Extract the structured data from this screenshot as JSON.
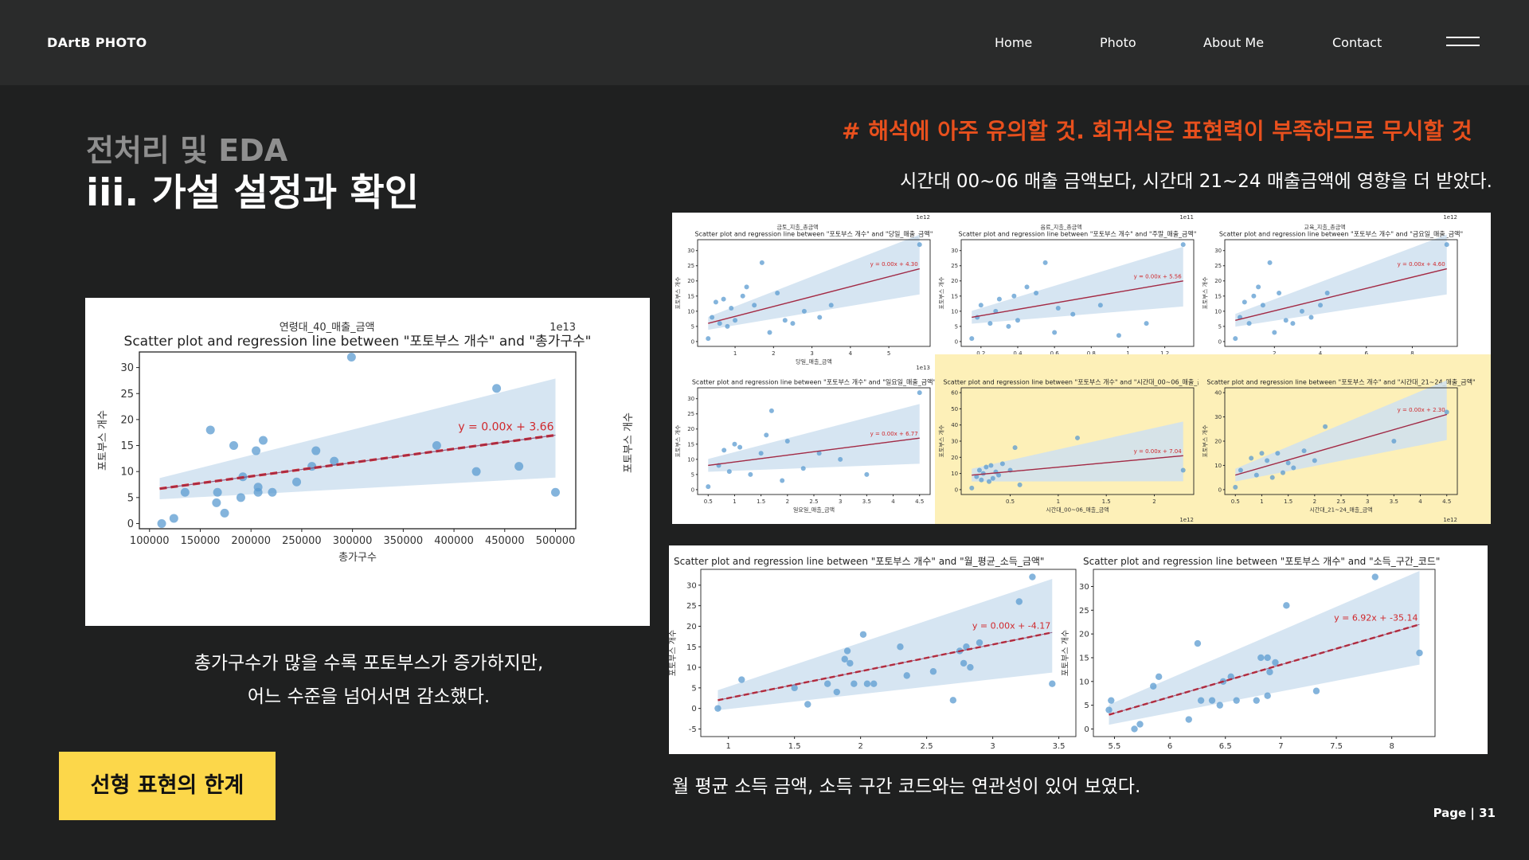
{
  "nav": {
    "brand": "DArtB PHOTO",
    "items": [
      "Home",
      "Photo",
      "About Me",
      "Contact"
    ]
  },
  "header": {
    "subtitle": "전처리 및 EDA",
    "title": "iii. 가설 설정과 확인"
  },
  "warning": "# 해석에 아주 유의할 것. 회귀식은 표현력이 부족하므로 무시할 것",
  "note_right": "시간대 00~06 매출 금액보다, 시간대 21~24 매출금액에 영향을 더 받았다.",
  "caption_left_lines": [
    "총가구수가 많을 수록 포토부스가 증가하지만,",
    "어느 수준을 넘어서면 감소했다."
  ],
  "tag": "선형 표현의 한계",
  "caption_bottom": "월 평균 소득 금액, 소득 구간 코드와는 연관성이 있어 보였다.",
  "page": "Page | 31",
  "colors": {
    "nav_bg": "#2a2b2b",
    "page_bg": "#1f2020",
    "warning": "#e8501d",
    "tag_bg": "#fcd74a",
    "point": "#5b9bd0",
    "band": "#cfe0f0",
    "reg_line": "#d0282c",
    "highlight": "#fdf0b8"
  },
  "chart_data": [
    {
      "id": "main",
      "type": "scatter",
      "top_label": "연령대_40_매출_금액",
      "offset_label": "1e13",
      "title": "Scatter plot and regression line between \"포토부스 개수\" and \"총가구수\"",
      "xlabel": "총가구수",
      "ylabel": "포토부스 개수",
      "xlim": [
        90000,
        520000
      ],
      "ylim": [
        -1,
        33
      ],
      "xticks": [
        100000,
        150000,
        200000,
        250000,
        300000,
        350000,
        400000,
        450000,
        500000
      ],
      "yticks": [
        0,
        5,
        10,
        15,
        20,
        25,
        30
      ],
      "equation": "y = 0.00x + 3.66",
      "points": [
        [
          112000,
          0
        ],
        [
          124000,
          1
        ],
        [
          135000,
          6
        ],
        [
          160000,
          18
        ],
        [
          166000,
          4
        ],
        [
          167000,
          6
        ],
        [
          174000,
          2
        ],
        [
          183000,
          15
        ],
        [
          190000,
          5
        ],
        [
          192000,
          9
        ],
        [
          205000,
          14
        ],
        [
          207000,
          6
        ],
        [
          207000,
          7
        ],
        [
          212000,
          16
        ],
        [
          221000,
          6
        ],
        [
          245000,
          8
        ],
        [
          260000,
          11
        ],
        [
          264000,
          14
        ],
        [
          282000,
          12
        ],
        [
          299000,
          32
        ],
        [
          383000,
          15
        ],
        [
          422000,
          10
        ],
        [
          442000,
          26
        ],
        [
          464000,
          11
        ],
        [
          500000,
          6
        ]
      ],
      "regression": [
        [
          110000,
          6.7
        ],
        [
          500000,
          17.0
        ]
      ]
    },
    {
      "id": "s1",
      "type": "scatter",
      "top_label": "금토_지출_총금액",
      "offset_label": "1e12",
      "title": "Scatter plot and regression line between \"포토부스 개수\" and \"당일_매출_금액\"",
      "xlabel": "당일_매출_금액",
      "ylabel": "포토부스 개수",
      "xticks": [
        1,
        2,
        3,
        4,
        5
      ],
      "yticks": [
        0,
        5,
        10,
        15,
        20,
        25,
        30
      ],
      "equation": "y = 0.00x + 4.30",
      "points": [
        [
          0.3,
          1
        ],
        [
          0.4,
          8
        ],
        [
          0.5,
          13
        ],
        [
          0.6,
          6
        ],
        [
          0.7,
          14
        ],
        [
          0.8,
          5
        ],
        [
          0.9,
          11
        ],
        [
          1.0,
          7
        ],
        [
          1.2,
          15
        ],
        [
          1.3,
          18
        ],
        [
          1.5,
          12
        ],
        [
          1.7,
          26
        ],
        [
          1.9,
          3
        ],
        [
          2.1,
          16
        ],
        [
          2.3,
          7
        ],
        [
          2.5,
          6
        ],
        [
          2.8,
          10
        ],
        [
          3.2,
          8
        ],
        [
          3.5,
          12
        ],
        [
          5.8,
          32
        ]
      ],
      "regression": [
        [
          0.3,
          6
        ],
        [
          5.8,
          24
        ]
      ]
    },
    {
      "id": "s2",
      "type": "scatter",
      "top_label": "음료_지출_총금액",
      "offset_label": "1e11",
      "title": "Scatter plot and regression line between \"포토부스 개수\" and \"주말_매출_금액\"",
      "xlabel": "주말_매출_금액",
      "ylabel": "포토부스 개수",
      "xticks": [
        0.2,
        0.4,
        0.6,
        0.8,
        1.0,
        1.2
      ],
      "yticks": [
        0,
        5,
        10,
        15,
        20,
        25,
        30
      ],
      "equation": "y = 0.00x + 5.56",
      "points": [
        [
          0.15,
          1
        ],
        [
          0.18,
          8
        ],
        [
          0.2,
          12
        ],
        [
          0.25,
          6
        ],
        [
          0.28,
          10
        ],
        [
          0.3,
          14
        ],
        [
          0.35,
          5
        ],
        [
          0.38,
          15
        ],
        [
          0.4,
          7
        ],
        [
          0.45,
          18
        ],
        [
          0.5,
          16
        ],
        [
          0.55,
          26
        ],
        [
          0.6,
          3
        ],
        [
          0.62,
          11
        ],
        [
          0.7,
          9
        ],
        [
          0.85,
          12
        ],
        [
          0.95,
          2
        ],
        [
          1.1,
          6
        ],
        [
          1.3,
          32
        ]
      ],
      "regression": [
        [
          0.15,
          8
        ],
        [
          1.3,
          20
        ]
      ]
    },
    {
      "id": "s3",
      "type": "scatter",
      "top_label": "교육_지출_총금액",
      "offset_label": "1e12",
      "title": "Scatter plot and regression line between \"포토부스 개수\" and \"금요일_매출_금액\"",
      "xlabel": "금요일_매출_금액",
      "ylabel": "포토부스 개수",
      "xticks": [
        2,
        4,
        6,
        8
      ],
      "yticks": [
        0,
        5,
        10,
        15,
        20,
        25,
        30
      ],
      "equation": "y = 0.00x + 4.60",
      "points": [
        [
          0.3,
          1
        ],
        [
          0.5,
          8
        ],
        [
          0.7,
          13
        ],
        [
          0.9,
          6
        ],
        [
          1.1,
          15
        ],
        [
          1.3,
          18
        ],
        [
          1.5,
          12
        ],
        [
          1.8,
          26
        ],
        [
          2.0,
          3
        ],
        [
          2.2,
          16
        ],
        [
          2.5,
          7
        ],
        [
          2.8,
          6
        ],
        [
          3.2,
          10
        ],
        [
          3.6,
          8
        ],
        [
          4.0,
          12
        ],
        [
          4.3,
          16
        ],
        [
          9.5,
          32
        ]
      ],
      "regression": [
        [
          0.3,
          7
        ],
        [
          9.5,
          24
        ]
      ]
    },
    {
      "id": "s4",
      "type": "scatter",
      "offset_label": "1e13",
      "title": "Scatter plot and regression line between \"포토부스 개수\" and \"일요일_매출_금액\"",
      "xlabel": "일요일_매출_금액",
      "ylabel": "포토부스 개수",
      "xticks": [
        0.5,
        1.0,
        1.5,
        2.0,
        2.5,
        3.0,
        3.5,
        4.0,
        4.5
      ],
      "yticks": [
        0,
        5,
        10,
        15,
        20,
        25,
        30
      ],
      "equation": "y = 0.00x + 6.77",
      "points": [
        [
          0.5,
          1
        ],
        [
          0.7,
          8
        ],
        [
          0.8,
          13
        ],
        [
          0.9,
          6
        ],
        [
          1.0,
          15
        ],
        [
          1.1,
          14
        ],
        [
          1.3,
          5
        ],
        [
          1.5,
          12
        ],
        [
          1.6,
          18
        ],
        [
          1.7,
          26
        ],
        [
          1.9,
          3
        ],
        [
          2.0,
          16
        ],
        [
          2.3,
          7
        ],
        [
          2.6,
          12
        ],
        [
          3.0,
          10
        ],
        [
          3.5,
          5
        ],
        [
          4.5,
          32
        ]
      ],
      "regression": [
        [
          0.5,
          8
        ],
        [
          4.5,
          17
        ]
      ]
    },
    {
      "id": "s5",
      "type": "scatter",
      "offset_label": "1e12",
      "title": "Scatter plot and regression line between \"포토부스 개수\" and \"시간대_00~06_매출_금액\"",
      "xlabel": "시간대_00~06_매출_금액",
      "ylabel": "포토부스 개수",
      "xticks": [
        0.5,
        1.0,
        1.5,
        2.0
      ],
      "yticks": [
        0,
        10,
        20,
        30,
        40,
        50,
        60
      ],
      "equation": "y = 0.00x + 7.04",
      "points": [
        [
          0.1,
          1
        ],
        [
          0.15,
          8
        ],
        [
          0.18,
          12
        ],
        [
          0.2,
          6
        ],
        [
          0.22,
          10
        ],
        [
          0.25,
          14
        ],
        [
          0.28,
          5
        ],
        [
          0.3,
          15
        ],
        [
          0.32,
          7
        ],
        [
          0.35,
          11
        ],
        [
          0.38,
          9
        ],
        [
          0.42,
          16
        ],
        [
          0.5,
          12
        ],
        [
          0.55,
          26
        ],
        [
          0.6,
          3
        ],
        [
          1.2,
          32
        ],
        [
          2.3,
          12
        ]
      ],
      "regression": [
        [
          0.1,
          9
        ],
        [
          2.3,
          21
        ]
      ]
    },
    {
      "id": "s6",
      "type": "scatter",
      "offset_label": "1e12",
      "title": "Scatter plot and regression line between \"포토부스 개수\" and \"시간대_21~24_매출_금액\"",
      "xlabel": "시간대_21~24_매출_금액",
      "ylabel": "포토부스 개수",
      "xticks": [
        0.5,
        1.0,
        1.5,
        2.0,
        2.5,
        3.0,
        3.5,
        4.0,
        4.5
      ],
      "yticks": [
        0,
        10,
        20,
        30,
        40
      ],
      "equation": "y = 0.00x + 2.30",
      "points": [
        [
          0.5,
          1
        ],
        [
          0.6,
          8
        ],
        [
          0.8,
          13
        ],
        [
          0.9,
          6
        ],
        [
          1.0,
          15
        ],
        [
          1.1,
          12
        ],
        [
          1.2,
          5
        ],
        [
          1.3,
          15
        ],
        [
          1.4,
          7
        ],
        [
          1.5,
          11
        ],
        [
          1.6,
          9
        ],
        [
          1.8,
          16
        ],
        [
          2.0,
          12
        ],
        [
          2.2,
          26
        ],
        [
          3.5,
          20
        ],
        [
          4.5,
          32
        ]
      ],
      "regression": [
        [
          0.5,
          6
        ],
        [
          4.5,
          31
        ]
      ]
    },
    {
      "id": "b1",
      "type": "scatter",
      "title": "Scatter plot and regression line between \"포토부스 개수\" and \"월_평균_소득_금액\"",
      "xlabel": "",
      "ylabel": "포토부스 개수",
      "xticks": [
        1.0,
        1.5,
        2.0,
        2.5,
        3.0,
        3.5
      ],
      "yticks": [
        -5,
        0,
        5,
        10,
        15,
        20,
        25,
        30
      ],
      "equation": "y = 0.00x + -4.17",
      "points": [
        [
          0.92,
          0
        ],
        [
          1.1,
          7
        ],
        [
          1.5,
          5
        ],
        [
          1.6,
          1
        ],
        [
          1.75,
          6
        ],
        [
          1.82,
          4
        ],
        [
          1.88,
          12
        ],
        [
          1.9,
          14
        ],
        [
          1.92,
          11
        ],
        [
          1.95,
          6
        ],
        [
          2.02,
          18
        ],
        [
          2.05,
          6
        ],
        [
          2.1,
          6
        ],
        [
          2.3,
          15
        ],
        [
          2.35,
          8
        ],
        [
          2.55,
          9
        ],
        [
          2.7,
          2
        ],
        [
          2.75,
          14
        ],
        [
          2.78,
          11
        ],
        [
          2.8,
          15
        ],
        [
          2.83,
          10
        ],
        [
          2.9,
          16
        ],
        [
          3.2,
          26
        ],
        [
          3.3,
          32
        ],
        [
          3.45,
          6
        ]
      ],
      "regression": [
        [
          0.92,
          2
        ],
        [
          3.45,
          18.5
        ]
      ]
    },
    {
      "id": "b2",
      "type": "scatter",
      "title": "Scatter plot and regression line between \"포토부스 개수\" and \"소득_구간_코드\"",
      "xlabel": "",
      "ylabel": "포토부스 개수",
      "xticks": [
        5.5,
        6.0,
        6.5,
        7.0,
        7.5,
        8.0
      ],
      "yticks": [
        0,
        5,
        10,
        15,
        20,
        25,
        30
      ],
      "equation": "y = 6.92x + -35.14",
      "points": [
        [
          5.45,
          4
        ],
        [
          5.47,
          6
        ],
        [
          5.68,
          0
        ],
        [
          5.73,
          1
        ],
        [
          5.85,
          9
        ],
        [
          5.9,
          11
        ],
        [
          6.17,
          2
        ],
        [
          6.25,
          18
        ],
        [
          6.28,
          6
        ],
        [
          6.38,
          6
        ],
        [
          6.45,
          5
        ],
        [
          6.48,
          10
        ],
        [
          6.55,
          11
        ],
        [
          6.6,
          6
        ],
        [
          6.78,
          6
        ],
        [
          6.82,
          15
        ],
        [
          6.88,
          15
        ],
        [
          6.88,
          7
        ],
        [
          6.9,
          12
        ],
        [
          6.95,
          14
        ],
        [
          7.05,
          26
        ],
        [
          7.32,
          8
        ],
        [
          7.85,
          32
        ],
        [
          8.25,
          16
        ]
      ],
      "regression": [
        [
          5.45,
          3
        ],
        [
          8.25,
          22
        ]
      ]
    }
  ]
}
